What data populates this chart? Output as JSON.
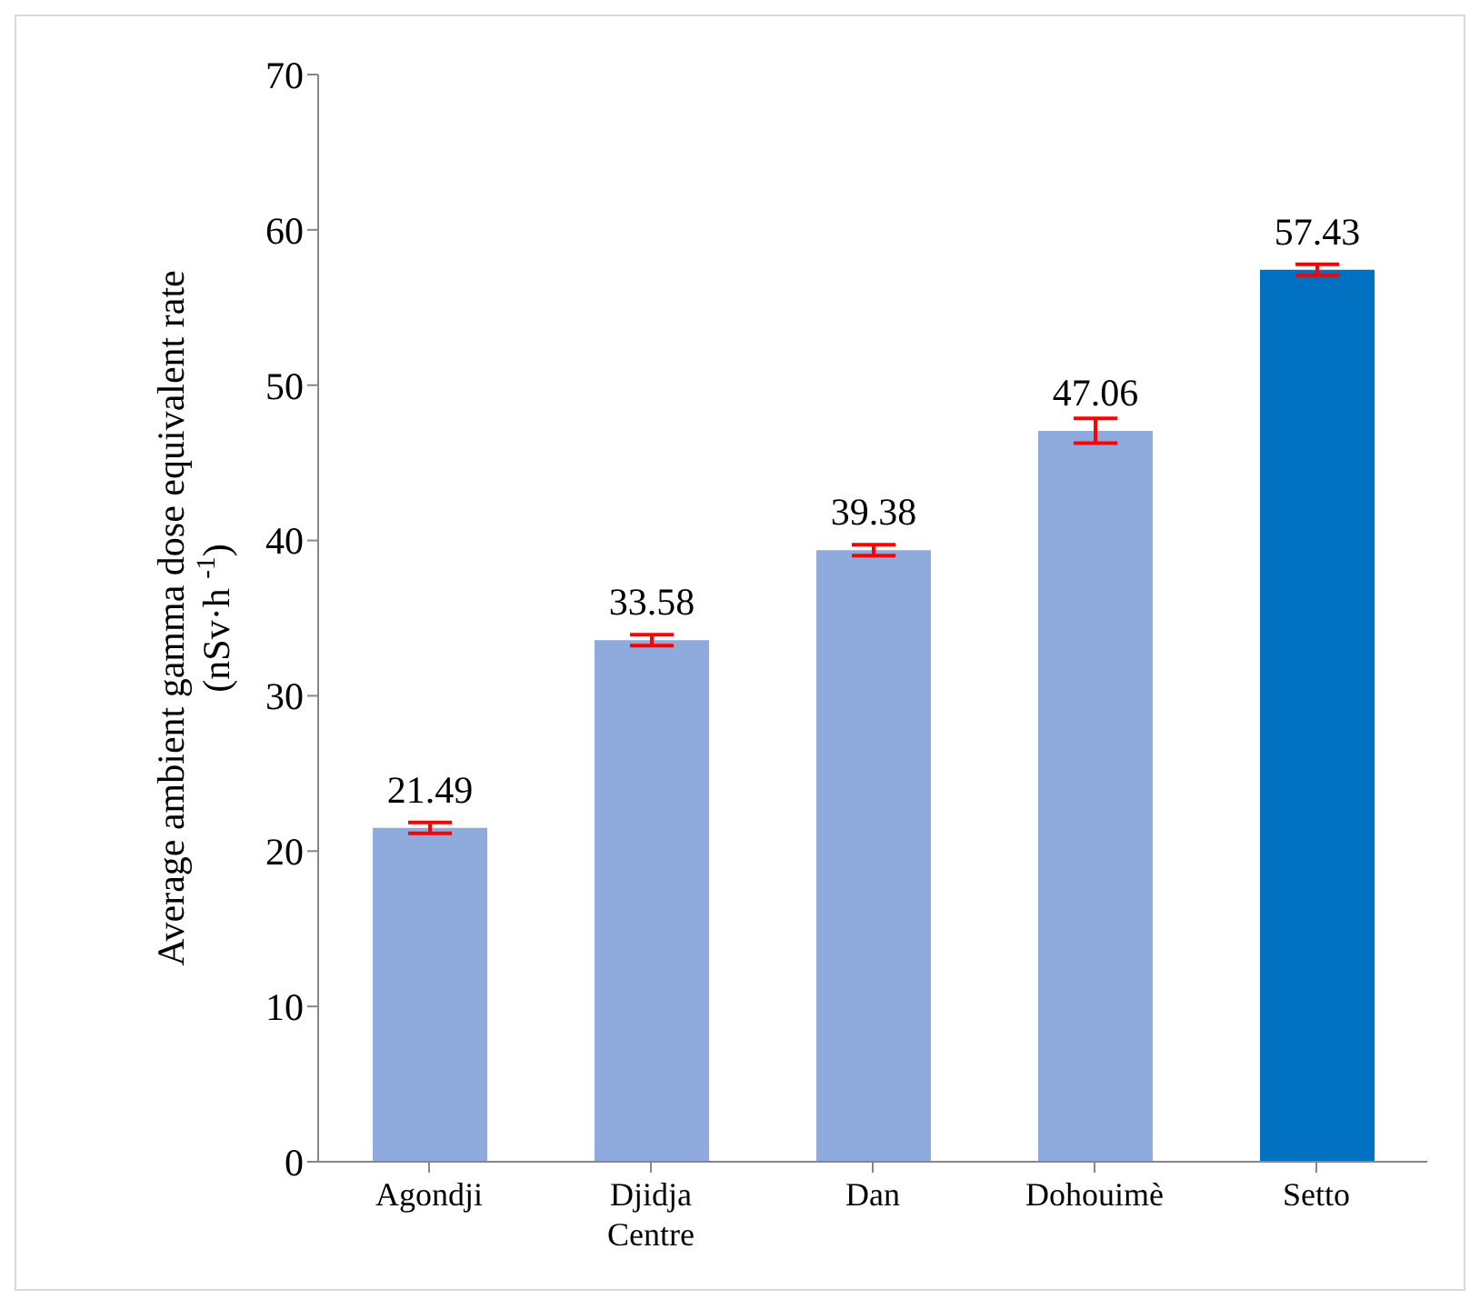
{
  "chart_data": {
    "type": "bar",
    "ylabel": "Average ambient gamma dose equivalent rate (nSv·h $^{-1}$)",
    "categories": [
      "Agondji",
      "Djidja Centre",
      "Dan",
      "Dohouimè",
      "Setto"
    ],
    "values": [
      21.49,
      33.58,
      39.38,
      47.06,
      57.43
    ],
    "colors": [
      "#8faadc",
      "#8faadc",
      "#8faadc",
      "#8faadc",
      "#0070c0"
    ],
    "errors": [
      0.35,
      0.35,
      0.35,
      0.8,
      0.35
    ],
    "ylim": [
      0,
      70
    ],
    "yticks": [
      0,
      10,
      20,
      30,
      40,
      50,
      60,
      70
    ],
    "data_labels": true
  }
}
